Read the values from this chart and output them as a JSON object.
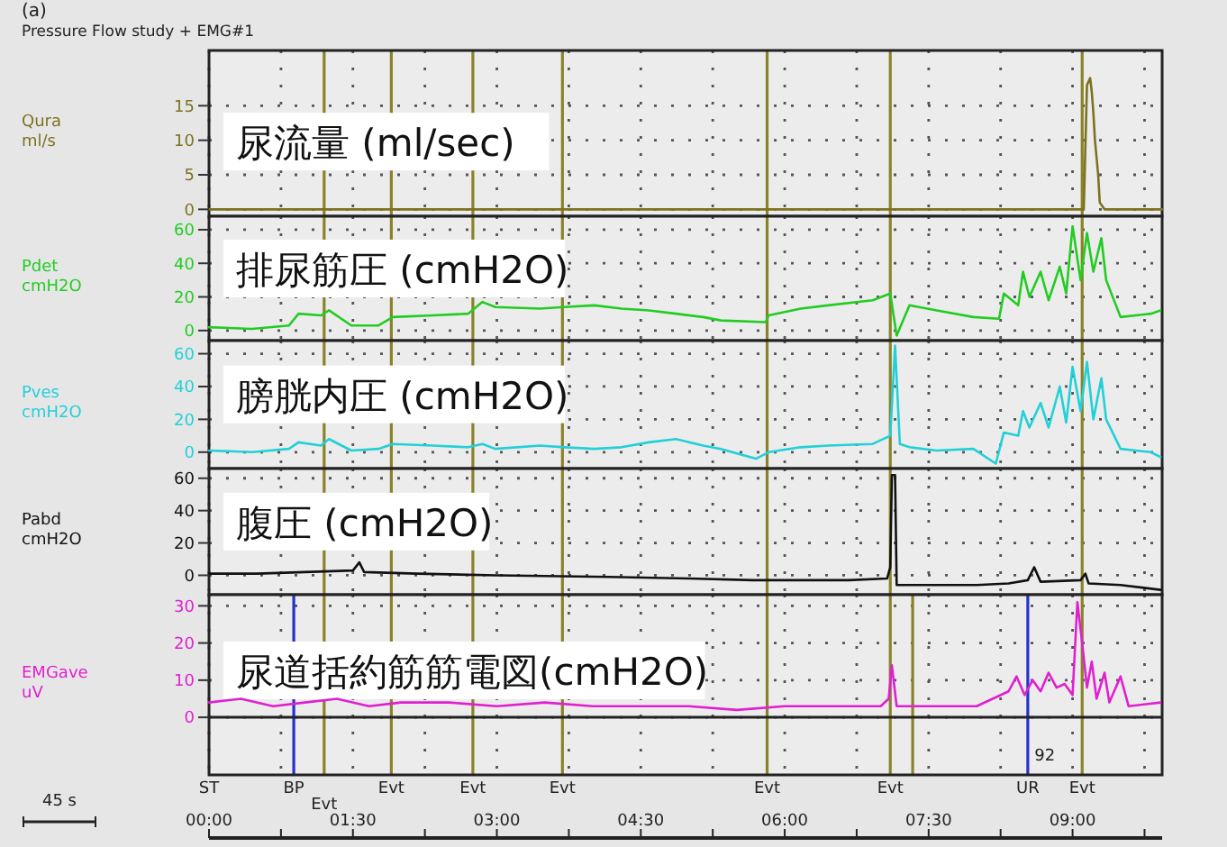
{
  "chart_data": [
    {
      "type": "line",
      "title": "尿流量 (ml/sec)",
      "subtitle": "Pressure Flow study + EMG#1",
      "annotations": [
        "(a)"
      ],
      "ylabel": "Qura ml/s",
      "xlim": [
        0,
        596
      ],
      "xticks": [
        0,
        45,
        90,
        135,
        180,
        225,
        270,
        315,
        360,
        405,
        450,
        495,
        540,
        585
      ],
      "ylim": [
        -1,
        23
      ],
      "yticks": [
        0,
        5,
        10,
        15
      ],
      "tick_labels": "y",
      "grid": true,
      "x": [
        0,
        547,
        549,
        551,
        552,
        553,
        554,
        556,
        557,
        560,
        596
      ],
      "series": [
        {
          "color": "#7d7220",
          "values": [
            0,
            0,
            18,
            19,
            17,
            14,
            10,
            5,
            1,
            0,
            0
          ]
        }
      ],
      "ref_lines": [
        {
          "axis": "x",
          "value": 72,
          "color": "#8a8228"
        },
        {
          "axis": "x",
          "value": 114,
          "color": "#8a8228"
        },
        {
          "axis": "x",
          "value": 165,
          "color": "#8a8228"
        },
        {
          "axis": "x",
          "value": 221,
          "color": "#8a8228"
        },
        {
          "axis": "x",
          "value": 349,
          "color": "#8a8228"
        },
        {
          "axis": "x",
          "value": 426,
          "color": "#8a8228"
        },
        {
          "axis": "x",
          "value": 546,
          "color": "#8a8228"
        }
      ]
    },
    {
      "type": "line",
      "title": "排尿筋圧 (cmH2O)",
      "ylabel": "Pdet cmH2O",
      "xlim": [
        0,
        596
      ],
      "xticks": [
        0,
        45,
        90,
        135,
        180,
        225,
        270,
        315,
        360,
        405,
        450,
        495,
        540,
        585
      ],
      "ylim": [
        -6,
        68
      ],
      "yticks": [
        0,
        20,
        40,
        60
      ],
      "tick_labels": "y",
      "grid": true,
      "x": [
        0,
        27,
        50,
        56,
        70,
        75,
        89,
        106,
        115,
        140,
        162,
        171,
        179,
        207,
        222,
        241,
        258,
        275,
        292,
        309,
        320,
        348,
        350,
        370,
        387,
        415,
        426,
        430,
        438,
        455,
        478,
        494,
        497,
        506,
        509,
        513,
        520,
        525,
        532,
        536,
        540,
        545,
        549,
        553,
        558,
        561,
        570,
        589,
        595
      ],
      "series": [
        {
          "color": "#22cc22",
          "values": [
            2,
            1,
            3,
            10,
            9,
            12,
            3,
            3,
            8,
            9,
            10,
            17,
            14,
            13,
            14,
            15,
            13,
            12,
            10,
            8,
            6,
            5,
            9,
            13,
            15,
            18,
            22,
            -3,
            15,
            12,
            8,
            7,
            22,
            15,
            35,
            20,
            35,
            18,
            38,
            22,
            62,
            30,
            58,
            35,
            55,
            30,
            8,
            10,
            12
          ]
        }
      ],
      "ref_lines": [
        {
          "axis": "x",
          "value": 72,
          "color": "#8a8228"
        },
        {
          "axis": "x",
          "value": 114,
          "color": "#8a8228"
        },
        {
          "axis": "x",
          "value": 165,
          "color": "#8a8228"
        },
        {
          "axis": "x",
          "value": 221,
          "color": "#8a8228"
        },
        {
          "axis": "x",
          "value": 349,
          "color": "#8a8228"
        },
        {
          "axis": "x",
          "value": 426,
          "color": "#8a8228"
        },
        {
          "axis": "x",
          "value": 546,
          "color": "#8a8228"
        }
      ]
    },
    {
      "type": "line",
      "title": "膀胱内圧 (cmH2O)",
      "ylabel": "Pves cmH2O",
      "xlim": [
        0,
        596
      ],
      "xticks": [
        0,
        45,
        90,
        135,
        180,
        225,
        270,
        315,
        360,
        405,
        450,
        495,
        540,
        585
      ],
      "ylim": [
        -10,
        68
      ],
      "yticks": [
        0,
        20,
        40,
        60
      ],
      "tick_labels": "y",
      "grid": true,
      "x": [
        0,
        27,
        50,
        56,
        70,
        75,
        89,
        106,
        115,
        140,
        162,
        171,
        179,
        207,
        222,
        241,
        258,
        275,
        292,
        309,
        320,
        342,
        350,
        370,
        387,
        415,
        426,
        429,
        432,
        438,
        455,
        478,
        492,
        497,
        506,
        509,
        513,
        520,
        525,
        532,
        536,
        540,
        545,
        549,
        553,
        558,
        561,
        570,
        589,
        595
      ],
      "series": [
        {
          "color": "#22d0d8",
          "values": [
            1,
            0,
            2,
            6,
            4,
            8,
            1,
            2,
            5,
            4,
            3,
            5,
            2,
            4,
            3,
            2,
            3,
            6,
            8,
            4,
            2,
            -4,
            0,
            3,
            4,
            5,
            10,
            65,
            5,
            3,
            1,
            2,
            -7,
            12,
            10,
            25,
            15,
            30,
            15,
            40,
            18,
            52,
            25,
            55,
            20,
            45,
            20,
            2,
            0,
            -3
          ]
        }
      ],
      "ref_lines": [
        {
          "axis": "x",
          "value": 72,
          "color": "#8a8228"
        },
        {
          "axis": "x",
          "value": 114,
          "color": "#8a8228"
        },
        {
          "axis": "x",
          "value": 165,
          "color": "#8a8228"
        },
        {
          "axis": "x",
          "value": 221,
          "color": "#8a8228"
        },
        {
          "axis": "x",
          "value": 349,
          "color": "#8a8228"
        },
        {
          "axis": "x",
          "value": 426,
          "color": "#8a8228"
        },
        {
          "axis": "x",
          "value": 546,
          "color": "#8a8228"
        }
      ]
    },
    {
      "type": "line",
      "title": "腹圧 (cmH2O)",
      "ylabel": "Pabd cmH2O",
      "xlim": [
        0,
        596
      ],
      "xticks": [
        0,
        45,
        90,
        135,
        180,
        225,
        270,
        315,
        360,
        405,
        450,
        495,
        540,
        585
      ],
      "ylim": [
        -12,
        66
      ],
      "yticks": [
        0,
        20,
        40,
        60
      ],
      "tick_labels": "y",
      "grid": true,
      "x": [
        0,
        30,
        60,
        90,
        94,
        97,
        130,
        180,
        250,
        300,
        340,
        400,
        424,
        426,
        427,
        429,
        430,
        450,
        480,
        500,
        512,
        516,
        520,
        545,
        548,
        550,
        570,
        595
      ],
      "series": [
        {
          "color": "#111111",
          "values": [
            1,
            1,
            2,
            3,
            8,
            2,
            1,
            0,
            -1,
            -2,
            -3,
            -3,
            -2,
            5,
            62,
            62,
            -6,
            -6,
            -6,
            -5,
            -3,
            5,
            -4,
            -3,
            1,
            -5,
            -6,
            -9
          ]
        }
      ],
      "ref_lines": [
        {
          "axis": "x",
          "value": 72,
          "color": "#8a8228"
        },
        {
          "axis": "x",
          "value": 114,
          "color": "#8a8228"
        },
        {
          "axis": "x",
          "value": 165,
          "color": "#8a8228"
        },
        {
          "axis": "x",
          "value": 221,
          "color": "#8a8228"
        },
        {
          "axis": "x",
          "value": 349,
          "color": "#8a8228"
        },
        {
          "axis": "x",
          "value": 426,
          "color": "#8a8228"
        },
        {
          "axis": "x",
          "value": 546,
          "color": "#8a8228"
        }
      ]
    },
    {
      "type": "line",
      "title": "尿道括約筋筋電図(cmH2O)",
      "ylabel": "EMGave uV",
      "annotations": [
        "45 s",
        "92",
        "ST"
      ],
      "xlim": [
        0,
        596
      ],
      "xticks": [
        {
          "value": 0,
          "label": "00:00"
        },
        {
          "value": 45,
          "label": null
        },
        {
          "value": 90,
          "label": "01:30"
        },
        {
          "value": 135,
          "label": null
        },
        {
          "value": 180,
          "label": "03:00"
        },
        {
          "value": 225,
          "label": null
        },
        {
          "value": 270,
          "label": "04:30"
        },
        {
          "value": 315,
          "label": null
        },
        {
          "value": 360,
          "label": "06:00"
        },
        {
          "value": 405,
          "label": null
        },
        {
          "value": 450,
          "label": "07:30"
        },
        {
          "value": 495,
          "label": null
        },
        {
          "value": 540,
          "label": "09:00"
        },
        {
          "value": 585,
          "label": null
        }
      ],
      "ylim": [
        -15.5,
        33
      ],
      "yticks": [
        0,
        10,
        20,
        30
      ],
      "grid": true,
      "x": [
        0,
        20,
        40,
        60,
        80,
        100,
        120,
        150,
        180,
        210,
        240,
        270,
        300,
        330,
        360,
        390,
        420,
        425,
        427,
        430,
        460,
        480,
        490,
        500,
        505,
        510,
        515,
        520,
        525,
        530,
        535,
        540,
        543,
        546,
        549,
        552,
        555,
        560,
        563,
        570,
        575,
        595
      ],
      "series": [
        {
          "color": "#e020d0",
          "values": [
            4,
            5,
            3,
            4,
            5,
            3,
            4,
            4,
            3,
            4,
            3,
            3,
            3,
            2,
            3,
            3,
            3,
            5,
            14,
            3,
            3,
            3,
            5,
            7,
            11,
            6,
            10,
            7,
            12,
            8,
            9,
            6,
            31,
            20,
            8,
            15,
            5,
            12,
            4,
            11,
            3,
            4
          ]
        }
      ],
      "ref_lines": [
        {
          "axis": "x",
          "value": 53,
          "label": "BP",
          "color": "#2233cc"
        },
        {
          "axis": "x",
          "value": 72,
          "label": "Evt",
          "color": "#8a8228"
        },
        {
          "axis": "x",
          "value": 114,
          "label": "Evt",
          "color": "#8a8228"
        },
        {
          "axis": "x",
          "value": 165,
          "label": "Evt",
          "color": "#8a8228"
        },
        {
          "axis": "x",
          "value": 221,
          "label": "Evt",
          "color": "#8a8228"
        },
        {
          "axis": "x",
          "value": 349,
          "label": "Evt",
          "color": "#8a8228"
        },
        {
          "axis": "x",
          "value": 426,
          "label": "Evt",
          "color": "#8a8228"
        },
        {
          "axis": "x",
          "value": 440,
          "color": "#8a8228"
        },
        {
          "axis": "x",
          "value": 512,
          "label": "UR",
          "color": "#2233cc"
        },
        {
          "axis": "x",
          "value": 546,
          "label": "Evt",
          "color": "#8a8228"
        },
        {
          "axis": "y",
          "value": 0,
          "color": "#222222"
        }
      ]
    }
  ]
}
